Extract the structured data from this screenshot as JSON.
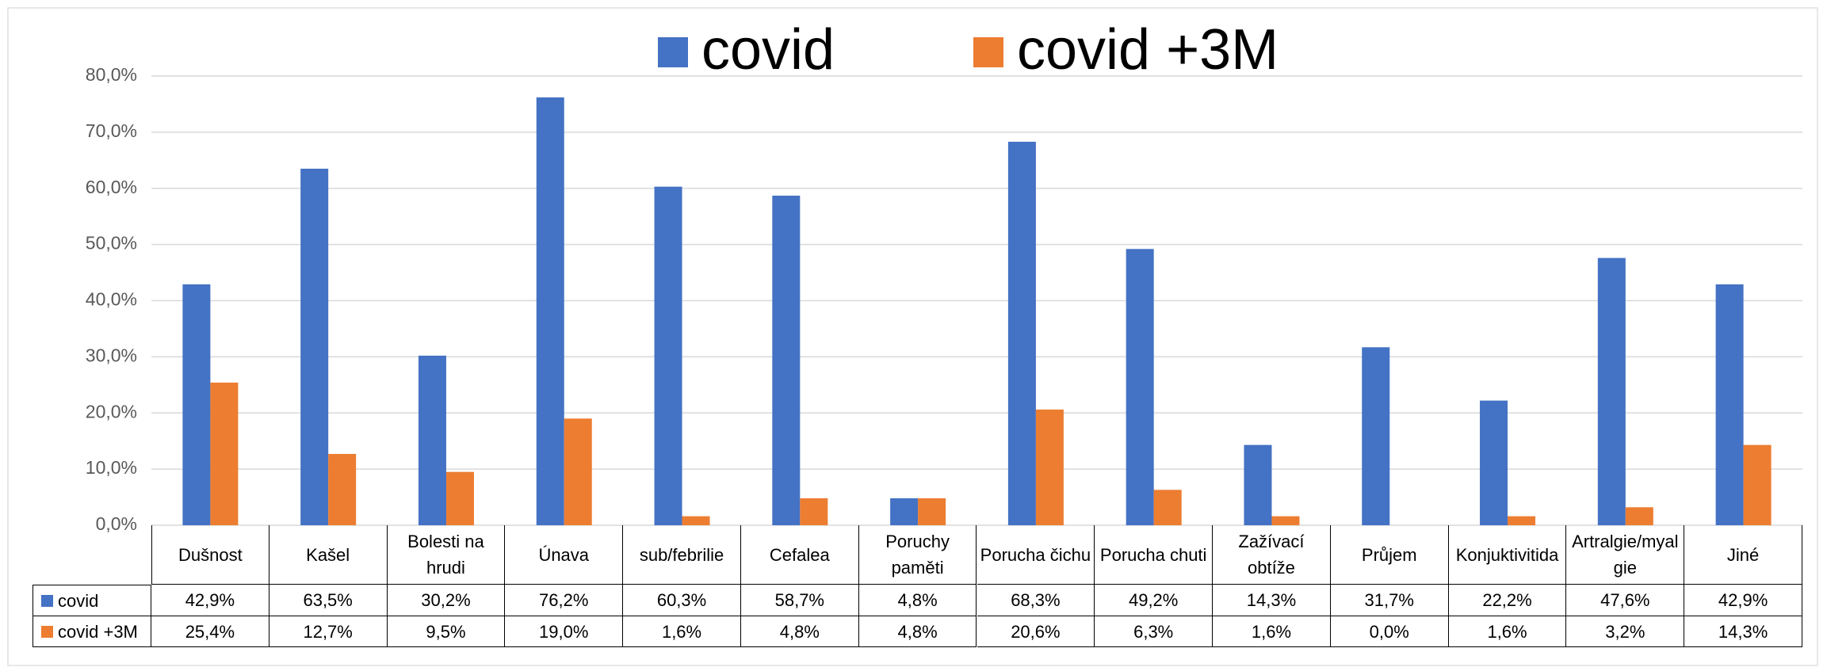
{
  "chart_data": {
    "type": "bar",
    "categories": [
      "Dušnost",
      "Kašel",
      "Bolesti na hrudi",
      "Únava",
      "sub/febrilie",
      "Cefalea",
      "Poruchy paměti",
      "Porucha čichu",
      "Porucha chuti",
      "Zažívací obtíže",
      "Průjem",
      "Konjuktivitida",
      "Artralgie/myalgie",
      "Jiné"
    ],
    "series": [
      {
        "name": "covid",
        "color": "#4472c4",
        "values": [
          42.9,
          63.5,
          30.2,
          76.2,
          60.3,
          58.7,
          4.8,
          68.3,
          49.2,
          14.3,
          31.7,
          22.2,
          47.6,
          42.9
        ],
        "value_labels": [
          "42,9%",
          "63,5%",
          "30,2%",
          "76,2%",
          "60,3%",
          "58,7%",
          "4,8%",
          "68,3%",
          "49,2%",
          "14,3%",
          "31,7%",
          "22,2%",
          "47,6%",
          "42,9%"
        ]
      },
      {
        "name": "covid +3M",
        "color": "#ed7d31",
        "values": [
          25.4,
          12.7,
          9.5,
          19.0,
          1.6,
          4.8,
          4.8,
          20.6,
          6.3,
          1.6,
          0.0,
          1.6,
          3.2,
          14.3
        ],
        "value_labels": [
          "25,4%",
          "12,7%",
          "9,5%",
          "19,0%",
          "1,6%",
          "4,8%",
          "4,8%",
          "20,6%",
          "6,3%",
          "1,6%",
          "0,0%",
          "1,6%",
          "3,2%",
          "14,3%"
        ]
      }
    ],
    "ylim": [
      0,
      80
    ],
    "yticks": [
      {
        "value": 0,
        "label": "0,0%"
      },
      {
        "value": 10,
        "label": "10,0%"
      },
      {
        "value": 20,
        "label": "20,0%"
      },
      {
        "value": 30,
        "label": "30,0%"
      },
      {
        "value": 40,
        "label": "40,0%"
      },
      {
        "value": 50,
        "label": "50,0%"
      },
      {
        "value": 60,
        "label": "60,0%"
      },
      {
        "value": 70,
        "label": "70,0%"
      },
      {
        "value": 80,
        "label": "80,0%"
      }
    ],
    "grid": true,
    "legend": "top"
  }
}
